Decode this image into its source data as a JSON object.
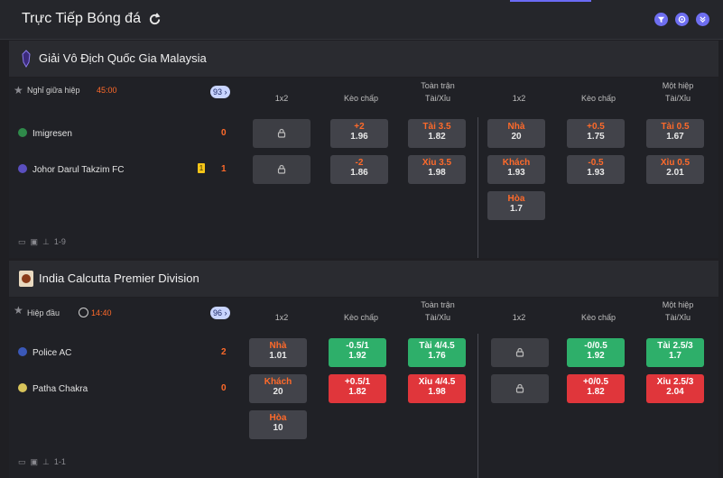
{
  "header": {
    "title": "Trực Tiếp Bóng đá",
    "refresh_icon": "refresh-icon",
    "tools": [
      "filter-icon",
      "target-icon",
      "collapse-icon"
    ],
    "accent": "#6e6ef0"
  },
  "leagues": [
    {
      "name": "Giải Vô Địch Quốc Gia Malaysia",
      "status": "Nghỉ giữa hiệp",
      "time": "45:00",
      "markets_count": "93",
      "headers": {
        "ft_1x2": "1x2",
        "ft_hdp": "Kèo chấp",
        "ft_ou_1": "Toàn trận",
        "ft_ou_2": "Tài/Xỉu",
        "h1_1x2": "1x2",
        "h1_hdp": "Kèo chấp",
        "h1_ou_1": "Một hiệp",
        "h1_ou_2": "Tài/Xỉu"
      },
      "home": {
        "name": "Imigresen",
        "score": "0"
      },
      "away": {
        "name": "Johor Darul Takzim FC",
        "score": "1",
        "card": "1"
      },
      "odds": {
        "ft_hdp_home": {
          "label": "+2",
          "value": "1.96"
        },
        "ft_hdp_away": {
          "label": "-2",
          "value": "1.86"
        },
        "ft_ou_over": {
          "label": "Tài 3.5",
          "value": "1.82"
        },
        "ft_ou_under": {
          "label": "Xỉu 3.5",
          "value": "1.98"
        },
        "h1_home": {
          "label": "Nhà",
          "value": "20"
        },
        "h1_away": {
          "label": "Khách",
          "value": "1.93"
        },
        "h1_draw": {
          "label": "Hòa",
          "value": "1.7"
        },
        "h1_hdp_home": {
          "label": "+0.5",
          "value": "1.75"
        },
        "h1_hdp_away": {
          "label": "-0.5",
          "value": "1.93"
        },
        "h1_ou_over": {
          "label": "Tài 0.5",
          "value": "1.67"
        },
        "h1_ou_under": {
          "label": "Xỉu 0.5",
          "value": "2.01"
        }
      },
      "footer": {
        "result": "1-9"
      }
    },
    {
      "name": "India Calcutta Premier Division",
      "status": "Hiệp đầu",
      "time": "14:40",
      "markets_count": "96",
      "headers": {
        "ft_1x2": "1x2",
        "ft_hdp": "Kèo chấp",
        "ft_ou_1": "Toàn trận",
        "ft_ou_2": "Tài/Xỉu",
        "h1_1x2": "1x2",
        "h1_hdp": "Kèo chấp",
        "h1_ou_1": "Một hiệp",
        "h1_ou_2": "Tài/Xỉu"
      },
      "home": {
        "name": "Police AC",
        "score": "2"
      },
      "away": {
        "name": "Patha Chakra",
        "score": "0"
      },
      "odds": {
        "ft_home": {
          "label": "Nhà",
          "value": "1.01"
        },
        "ft_away": {
          "label": "Khách",
          "value": "20"
        },
        "ft_draw": {
          "label": "Hòa",
          "value": "10"
        },
        "ft_hdp_home": {
          "label": "-0.5/1",
          "value": "1.92"
        },
        "ft_hdp_away": {
          "label": "+0.5/1",
          "value": "1.82"
        },
        "ft_ou_over": {
          "label": "Tài 4/4.5",
          "value": "1.76"
        },
        "ft_ou_under": {
          "label": "Xỉu 4/4.5",
          "value": "1.98"
        },
        "h1_hdp_home": {
          "label": "-0/0.5",
          "value": "1.92"
        },
        "h1_hdp_away": {
          "label": "+0/0.5",
          "value": "1.82"
        },
        "h1_ou_over": {
          "label": "Tài 2.5/3",
          "value": "1.7"
        },
        "h1_ou_under": {
          "label": "Xỉu 2.5/3",
          "value": "2.04"
        }
      },
      "footer": {
        "result": "1-1"
      }
    }
  ],
  "colors": {
    "odds_label": "#ff6a2a",
    "up": "#2eaf6a",
    "down": "#e0363b",
    "badge": "#c8d4ff"
  }
}
